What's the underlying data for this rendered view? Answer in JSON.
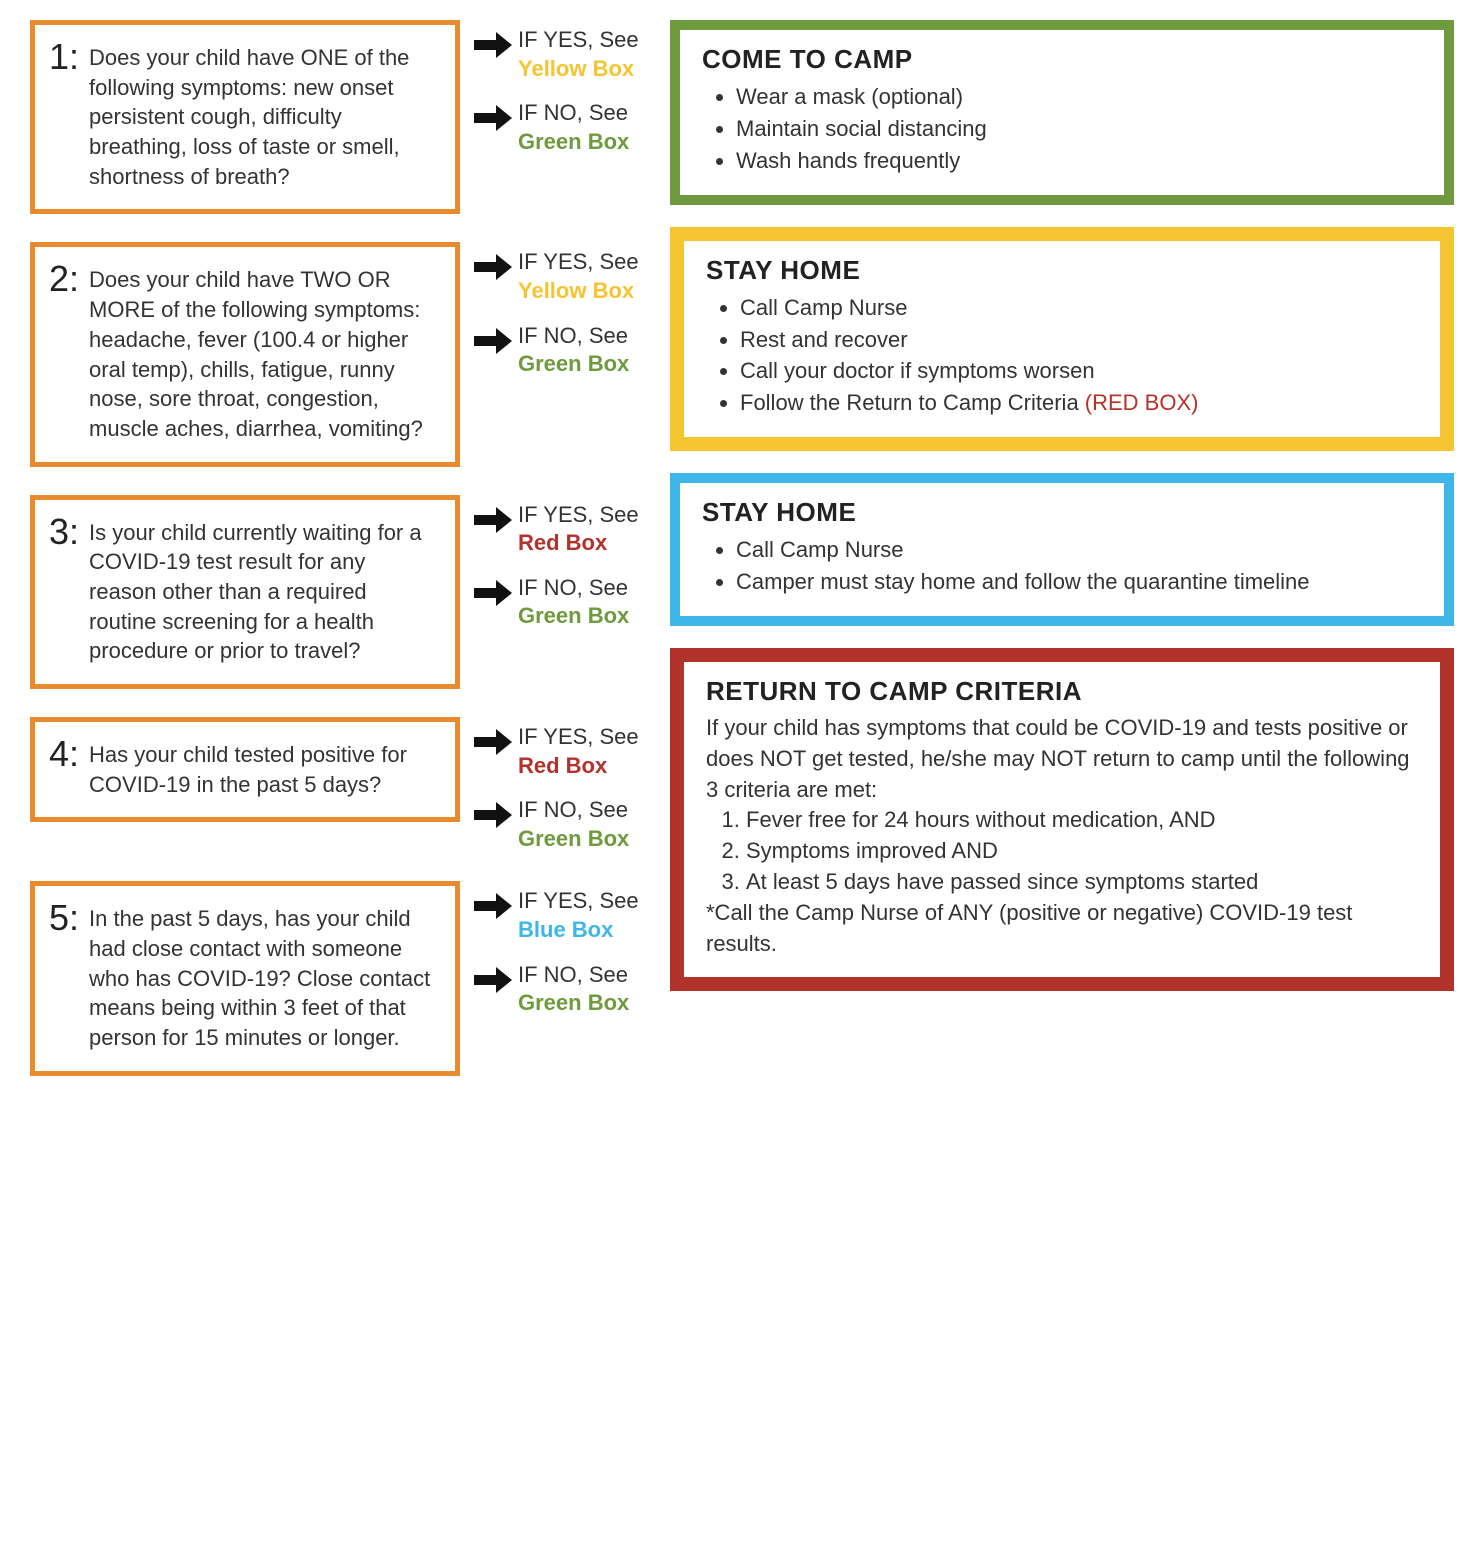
{
  "colors": {
    "orange": "#e88b2e",
    "yellow": "#f5c531",
    "green": "#6f9a3e",
    "blue": "#3fb6e8",
    "red": "#b1332c",
    "arrow": "#111111",
    "text": "#333333"
  },
  "questions": [
    {
      "num": "1:",
      "text": "Does your child have ONE of the following symptoms: new onset persistent cough, difficulty breathing, loss of taste or smell, shortness of breath?",
      "yes_prefix": "IF YES, See",
      "yes_target": "Yellow Box",
      "yes_color": "#f5c531",
      "no_prefix": "IF NO, See",
      "no_target": "Green Box",
      "no_color": "#6f9a3e"
    },
    {
      "num": "2:",
      "text": "Does your child have TWO OR MORE of the following symptoms: headache, fever (100.4 or higher oral temp), chills, fatigue, runny nose, sore throat, congestion, muscle aches, diarrhea, vomiting?",
      "yes_prefix": "IF YES, See",
      "yes_target": "Yellow Box",
      "yes_color": "#f5c531",
      "no_prefix": "IF NO, See",
      "no_target": "Green Box",
      "no_color": "#6f9a3e"
    },
    {
      "num": "3:",
      "text": "Is your child currently waiting for a COVID-19 test result for any reason other than a required routine screening for a health procedure or prior to travel?",
      "yes_prefix": "IF YES, See",
      "yes_target": "Red Box",
      "yes_color": "#b1332c",
      "no_prefix": "IF NO, See",
      "no_target": "Green Box",
      "no_color": "#6f9a3e"
    },
    {
      "num": "4:",
      "text": "Has your child tested positive for COVID-19 in the past 5 days?",
      "yes_prefix": "IF YES, See",
      "yes_target": "Red Box",
      "yes_color": "#b1332c",
      "no_prefix": "IF NO, See",
      "no_target": "Green Box",
      "no_color": "#6f9a3e"
    },
    {
      "num": "5:",
      "text": "In the past 5 days, has your child had close contact with someone who has COVID-19? Close contact means being within 3 feet of that person for 15 minutes or longer.",
      "yes_prefix": "IF YES, See",
      "yes_target": "Blue Box",
      "yes_color": "#3fb6e8",
      "no_prefix": "IF NO, See",
      "no_target": "Green Box",
      "no_color": "#6f9a3e"
    }
  ],
  "green_box": {
    "border_color": "#6f9a3e",
    "border_width": 10,
    "title": "COME TO CAMP",
    "items": [
      "Wear a mask (optional)",
      "Maintain social distancing",
      "Wash hands frequently"
    ]
  },
  "yellow_box": {
    "border_color": "#f5c531",
    "border_width": 14,
    "title": "STAY HOME",
    "items": [
      "Call Camp Nurse",
      "Rest and recover",
      "Call your doctor if symptoms worsen"
    ],
    "last_item_prefix": "Follow the Return to Camp Criteria ",
    "last_item_ref": "(RED BOX)"
  },
  "blue_box": {
    "border_color": "#3fb6e8",
    "border_width": 10,
    "title": "STAY HOME",
    "items": [
      "Call Camp Nurse",
      "Camper must stay home and follow the quarantine timeline"
    ]
  },
  "red_box": {
    "border_color": "#b1332c",
    "border_width": 14,
    "title": "RETURN TO CAMP CRITERIA",
    "intro": "If your child has symptoms that could be COVID-19 and tests positive or does NOT get tested, he/she may NOT return to camp until the following 3 criteria are met:",
    "criteria": [
      "Fever free for 24 hours without medication, AND",
      "Symptoms improved AND",
      "At least 5 days have passed since symptoms started"
    ],
    "footnote": "*Call the Camp Nurse of ANY (positive or negative) COVID-19 test results."
  }
}
